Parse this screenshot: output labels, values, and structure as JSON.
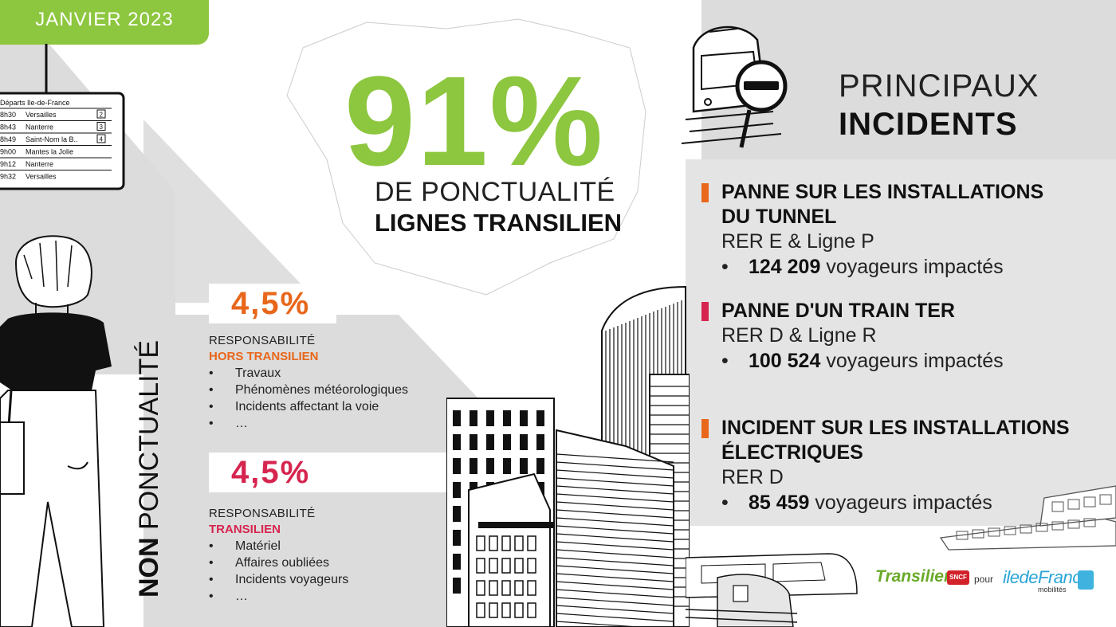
{
  "header": {
    "date": "JANVIER 2023"
  },
  "punctuality": {
    "percent": "91%",
    "label_line1": "DE PONCTUALITÉ",
    "label_line2": "LIGNES TRANSILIEN"
  },
  "incidents_section": {
    "title_line1": "PRINCIPAUX",
    "title_line2": "INCIDENTS",
    "items": [
      {
        "title_lines": [
          "PANNE SUR LES INSTALLATIONS",
          "DU TUNNEL"
        ],
        "lines": "RER E & Ligne P",
        "count": "124 209",
        "suffix": " voyageurs impactés",
        "color": "#e8671b"
      },
      {
        "title_lines": [
          "PANNE D'UN TRAIN TER"
        ],
        "lines": "RER D & Ligne R",
        "count": "100 524",
        "suffix": " voyageurs impactés",
        "color": "#d6254f"
      },
      {
        "title_lines": [
          "INCIDENT SUR LES INSTALLATIONS",
          "ÉLECTRIQUES"
        ],
        "lines": "RER D",
        "count": "85 459",
        "suffix": " voyageurs impactés",
        "color": "#e8671b"
      }
    ],
    "bullet": "•"
  },
  "non_punctuality": {
    "label_bold": "NON",
    "label_rest": " PONCTUALITÉ",
    "external": {
      "percent": "4,5%",
      "heading": "RESPONSABILITÉ",
      "heading_strong": "HORS TRANSILIEN",
      "color": "#e8671b",
      "items": [
        "Travaux",
        "Phénomènes météorologiques",
        "Incidents affectant la voie",
        "…"
      ]
    },
    "internal": {
      "percent": "4,5%",
      "heading": "RESPONSABILITÉ",
      "heading_strong": "TRANSILIEN",
      "color": "#d6254f",
      "items": [
        "Matériel",
        "Affaires oubliées",
        "Incidents voyageurs",
        "…"
      ]
    }
  },
  "departure_board": {
    "header": "Départs Ile-de-France",
    "rows": [
      {
        "time": "8h30",
        "dest": "Versailles",
        "track": "2"
      },
      {
        "time": "8h43",
        "dest": "Nanterre",
        "track": "3"
      },
      {
        "time": "8h49",
        "dest": "Saint-Nom la B..",
        "track": "4"
      },
      {
        "time": "9h00",
        "dest": "Mantes la Jolie",
        "track": ""
      },
      {
        "time": "9h12",
        "dest": "Nanterre",
        "track": ""
      },
      {
        "time": "9h32",
        "dest": "Versailles",
        "track": ""
      }
    ]
  },
  "logos": {
    "transilien": "Transilien",
    "sncf": "SNCF",
    "pour": "pour",
    "idf": "iledeFrance",
    "idf_sub": "mobilités"
  },
  "colors": {
    "green": "#8dc63f",
    "orange": "#e8671b",
    "crimson": "#d6254f",
    "grey_bg": "#dcdcdc"
  },
  "icons": [
    "magnifier-minus-icon",
    "tram-front-icon",
    "person-illustration",
    "city-buildings-illustration",
    "train-illustration",
    "accessibility-icon"
  ]
}
